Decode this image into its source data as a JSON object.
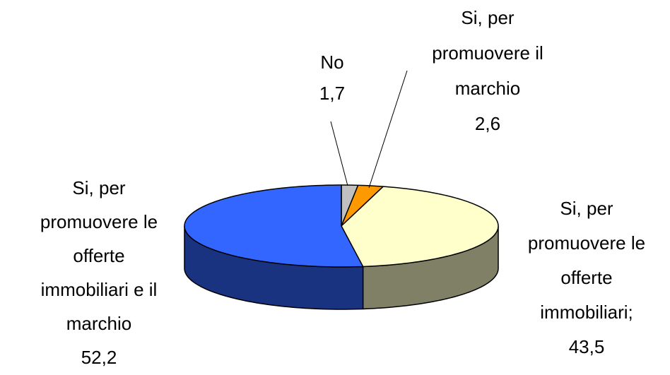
{
  "chart_data": {
    "type": "pie3d",
    "categories": [
      "No",
      "Si, per promuovere il marchio",
      "Si, per promuovere le offerte immobiliari;",
      "Si, per promuovere le offerte immobiliari e il marchio"
    ],
    "values": [
      1.7,
      2.6,
      43.5,
      52.2
    ],
    "value_labels": [
      "1,7",
      "2,6",
      "43,5",
      "52,2"
    ],
    "colors": [
      "#c0c0c0",
      "#ff9900",
      "#ffffcc",
      "#3366ff"
    ],
    "side_colors": [
      "#909090",
      "#b36b00",
      "#808066",
      "#1a3380"
    ]
  }
}
